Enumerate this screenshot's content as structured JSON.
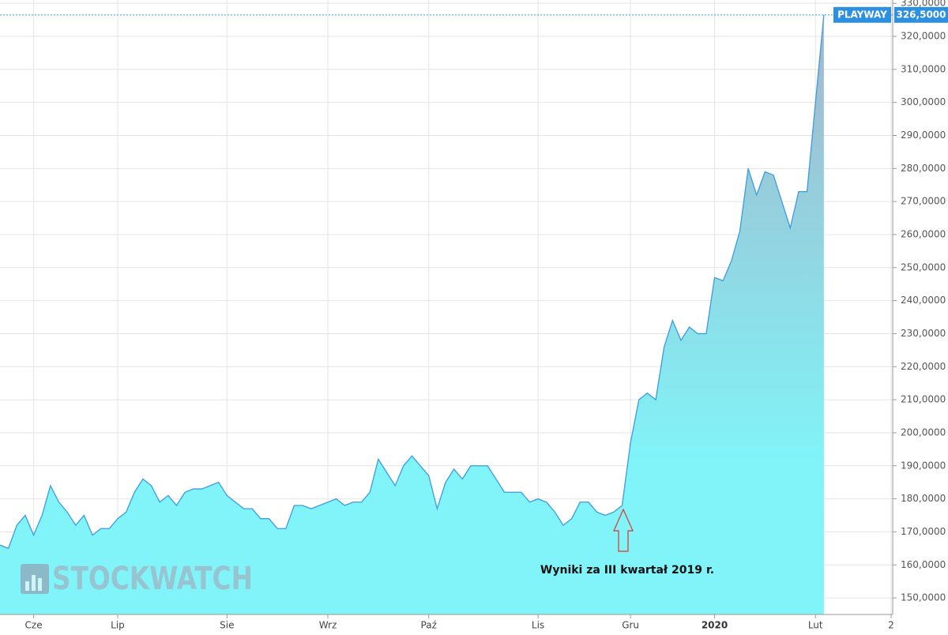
{
  "chart_data": {
    "type": "area",
    "watermark": "STOCKWATCH",
    "annotation": "Wyniki za III kwartał 2019 r.",
    "categories": [
      null,
      null,
      null,
      null,
      "Cze",
      null,
      null,
      null,
      null,
      null,
      null,
      null,
      null,
      null,
      "Lip",
      null,
      null,
      null,
      null,
      null,
      null,
      null,
      null,
      null,
      null,
      null,
      null,
      "Sie",
      null,
      null,
      null,
      null,
      null,
      null,
      null,
      null,
      null,
      null,
      null,
      "Wrz",
      null,
      null,
      null,
      null,
      null,
      null,
      null,
      null,
      null,
      null,
      null,
      "Paź",
      null,
      null,
      null,
      null,
      null,
      null,
      null,
      null,
      null,
      null,
      null,
      null,
      "Lis",
      null,
      null,
      null,
      null,
      null,
      null,
      null,
      null,
      null,
      null,
      "Gru",
      null,
      null,
      null,
      null,
      null,
      null,
      null,
      null,
      null,
      "2020",
      null,
      null,
      null,
      null,
      null,
      null,
      null,
      null,
      null,
      null,
      null,
      "Lut",
      null,
      null,
      null,
      null,
      null,
      null,
      null,
      null,
      "2"
    ],
    "series": [
      {
        "name": "PLAYWAY",
        "color": "#3d9be0",
        "area_colors": [
          "#a2b9cd",
          "#80f4f8"
        ],
        "values": [
          166,
          165,
          172,
          175,
          169,
          175,
          184,
          179,
          176,
          172,
          175,
          169,
          171,
          171,
          174,
          176,
          182,
          186,
          184,
          179,
          181,
          178,
          182,
          183,
          183,
          184,
          185,
          181,
          179,
          177,
          177,
          174,
          174,
          171,
          171,
          178,
          178,
          177,
          178,
          179,
          180,
          178,
          179,
          179,
          182,
          192,
          188,
          184,
          190,
          193,
          190,
          187,
          177,
          185,
          189,
          186,
          190,
          190,
          190,
          186,
          182,
          182,
          182,
          179,
          180,
          179,
          176,
          172,
          174,
          179,
          179,
          176,
          175,
          176,
          178,
          197,
          210,
          212,
          210,
          226,
          234,
          228,
          232,
          230,
          230,
          247,
          246,
          252,
          261,
          280,
          272,
          279,
          278,
          270,
          262,
          273,
          273,
          300,
          326.5,
          null,
          null,
          null,
          null,
          null,
          null,
          null,
          null
        ]
      }
    ],
    "last_price": {
      "value": 326.5,
      "label": "326,5000"
    },
    "ylim": [
      145,
      331
    ],
    "yticks": [
      {
        "value": 150,
        "label": "150,0000"
      },
      {
        "value": 160,
        "label": "160,0000"
      },
      {
        "value": 170,
        "label": "170,0000"
      },
      {
        "value": 180,
        "label": "180,0000"
      },
      {
        "value": 190,
        "label": "190,0000"
      },
      {
        "value": 200,
        "label": "200,0000"
      },
      {
        "value": 210,
        "label": "210,0000"
      },
      {
        "value": 220,
        "label": "220,0000"
      },
      {
        "value": 230,
        "label": "230,0000"
      },
      {
        "value": 240,
        "label": "240,0000"
      },
      {
        "value": 250,
        "label": "250,0000"
      },
      {
        "value": 260,
        "label": "260,0000"
      },
      {
        "value": 270,
        "label": "270,0000"
      },
      {
        "value": 280,
        "label": "280,0000"
      },
      {
        "value": 290,
        "label": "290,0000"
      },
      {
        "value": 300,
        "label": "300,0000"
      },
      {
        "value": 310,
        "label": "310,0000"
      },
      {
        "value": 320,
        "label": "320,0000"
      },
      {
        "value": 330,
        "label": "330,0000"
      }
    ],
    "grid": true
  }
}
